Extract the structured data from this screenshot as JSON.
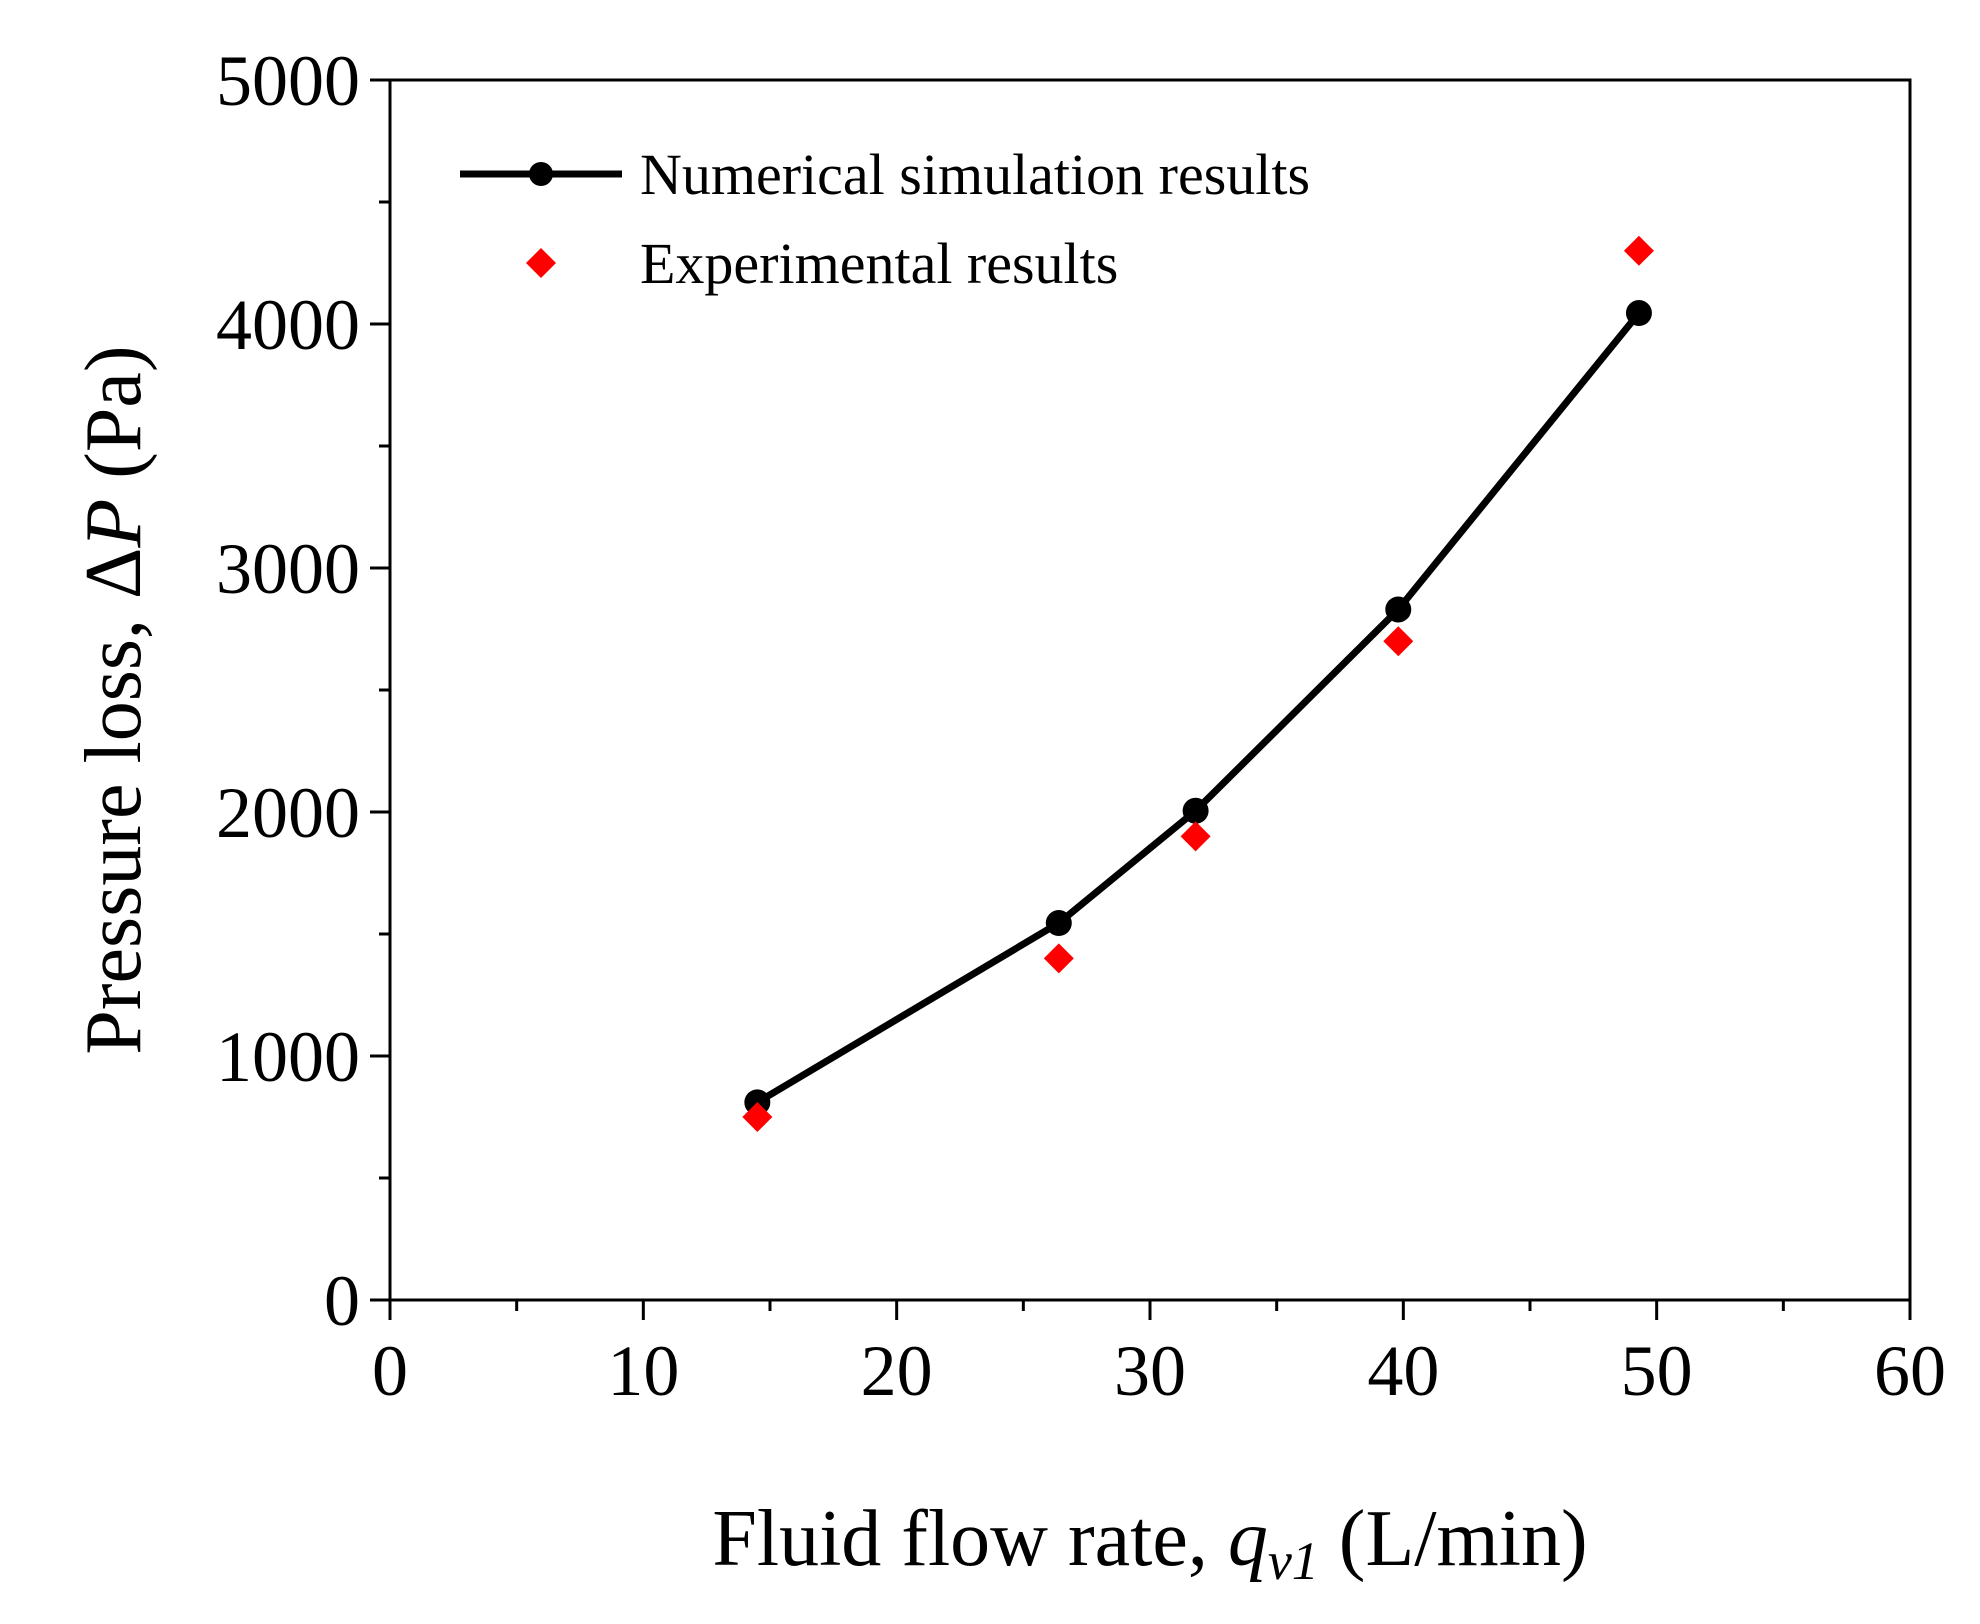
{
  "chart_data": {
    "type": "line",
    "title": "",
    "xlabel": {
      "prefix": "Fluid  flow rate, ",
      "symbol": "q",
      "subscript": "v1",
      "unit": " (L/min)"
    },
    "ylabel": {
      "prefix": "Pressure loss, Δ",
      "symbol": "P",
      "unit": " (Pa)"
    },
    "xlim": [
      0,
      60
    ],
    "ylim": [
      0,
      5000
    ],
    "xticks": [
      0,
      10,
      20,
      30,
      40,
      50,
      60
    ],
    "yticks": [
      0,
      1000,
      2000,
      3000,
      4000,
      5000
    ],
    "x_minor_step": 5,
    "y_minor_step": 500,
    "grid": false,
    "legend_position": "top-left",
    "series": [
      {
        "name": "Numerical simulation results",
        "kind": "line+circle",
        "color": "#000000",
        "x": [
          14.5,
          26.4,
          31.8,
          39.8,
          49.3
        ],
        "y": [
          810,
          1545,
          2005,
          2830,
          4045
        ]
      },
      {
        "name": "Experimental results",
        "kind": "diamond",
        "color": "#ff0000",
        "x": [
          14.5,
          26.4,
          31.8,
          39.8,
          49.3
        ],
        "y": [
          750,
          1400,
          1900,
          2700,
          4300
        ]
      }
    ]
  }
}
